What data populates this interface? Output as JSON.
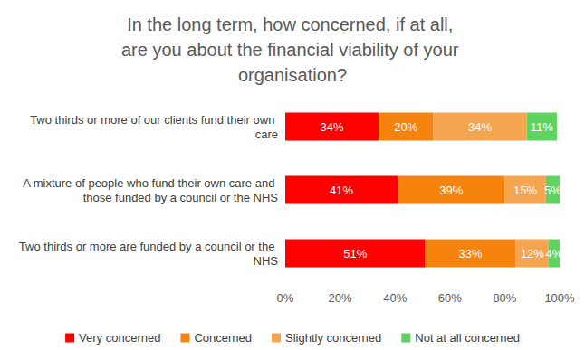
{
  "chart_data": {
    "type": "bar",
    "orientation": "horizontal",
    "stacked": true,
    "data_labels": true,
    "grid": false,
    "legend": "bottom",
    "title": "In the long term, how concerned, if at all, are you about the financial viability of your organisation?",
    "categories": [
      "Two thirds or more of our clients fund their own care",
      "A mixture of people who fund their own care and those funded by a council or the NHS",
      "Two thirds or more are funded by a council or the NHS"
    ],
    "series": [
      {
        "name": "Very concerned",
        "color": "#ff0000",
        "values": [
          34,
          41,
          51
        ],
        "value_labels": [
          "34%",
          "41%",
          "51%"
        ]
      },
      {
        "name": "Concerned",
        "color": "#f7830f",
        "values": [
          20,
          39,
          33
        ],
        "value_labels": [
          "20%",
          "39%",
          "33%"
        ]
      },
      {
        "name": "Slightly concerned",
        "color": "#f5a54f",
        "values": [
          34,
          15,
          12
        ],
        "value_labels": [
          "34%",
          "15%",
          "12%"
        ]
      },
      {
        "name": "Not at all concerned",
        "color": "#5fd35f",
        "values": [
          11,
          5,
          4
        ],
        "value_labels": [
          "11%",
          "5%",
          "4%"
        ]
      }
    ],
    "xlim": [
      0,
      100
    ],
    "xticks": [
      {
        "value": 0,
        "label": "0%"
      },
      {
        "value": 20,
        "label": "20%"
      },
      {
        "value": 40,
        "label": "40%"
      },
      {
        "value": 60,
        "label": "60%"
      },
      {
        "value": 80,
        "label": "80%"
      },
      {
        "value": 100,
        "label": "100%"
      }
    ]
  }
}
